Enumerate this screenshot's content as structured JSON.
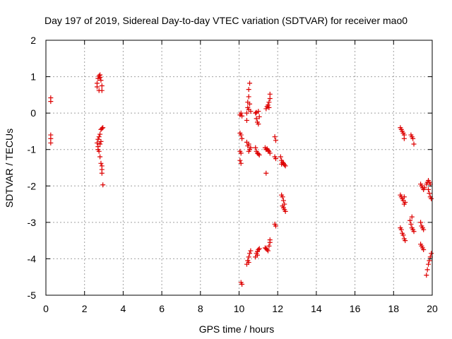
{
  "chart_data": {
    "type": "scatter",
    "title": "Day 197 of 2019, Sidereal Day-to-day VTEC variation (SDTVAR) for receiver mao0",
    "xlabel": "GPS time / hours",
    "ylabel": "SDTVAR / TECUs",
    "xlim": [
      0,
      20
    ],
    "ylim": [
      -5,
      2
    ],
    "xticks": [
      0,
      2,
      4,
      6,
      8,
      10,
      12,
      14,
      16,
      18,
      20
    ],
    "yticks": [
      -5,
      -4,
      -3,
      -2,
      -1,
      0,
      1,
      2
    ],
    "grid": true,
    "marker": "+",
    "colors": {
      "series": "#dd0000",
      "grid": "#a0a0a0",
      "axis": "#000000"
    },
    "series": [
      {
        "name": "SDTVAR",
        "points": [
          [
            0.25,
            0.42
          ],
          [
            0.25,
            0.32
          ],
          [
            0.25,
            -0.6
          ],
          [
            0.25,
            -0.7
          ],
          [
            0.25,
            -0.82
          ],
          [
            2.65,
            0.82
          ],
          [
            2.65,
            0.72
          ],
          [
            2.7,
            0.95
          ],
          [
            2.75,
            1.02
          ],
          [
            2.8,
            0.98
          ],
          [
            2.85,
            0.9
          ],
          [
            2.75,
            0.62
          ],
          [
            2.9,
            0.62
          ],
          [
            2.9,
            0.75
          ],
          [
            2.8,
            1.05
          ],
          [
            2.65,
            -0.82
          ],
          [
            2.7,
            -0.72
          ],
          [
            2.7,
            -0.92
          ],
          [
            2.75,
            -0.65
          ],
          [
            2.75,
            -1.05
          ],
          [
            2.8,
            -0.58
          ],
          [
            2.8,
            -0.85
          ],
          [
            2.8,
            -1.2
          ],
          [
            2.85,
            -0.45
          ],
          [
            2.85,
            -0.78
          ],
          [
            2.85,
            -1.38
          ],
          [
            2.9,
            -0.42
          ],
          [
            2.9,
            -1.45
          ],
          [
            2.9,
            -1.55
          ],
          [
            2.9,
            -1.65
          ],
          [
            2.95,
            -0.4
          ],
          [
            2.95,
            -1.97
          ],
          [
            2.7,
            -1.0
          ],
          [
            10.05,
            -0.05
          ],
          [
            10.1,
            0.0
          ],
          [
            10.15,
            -0.08
          ],
          [
            10.05,
            -0.55
          ],
          [
            10.1,
            -0.6
          ],
          [
            10.15,
            -0.7
          ],
          [
            10.05,
            -1.05
          ],
          [
            10.1,
            -1.1
          ],
          [
            10.05,
            -1.3
          ],
          [
            10.1,
            -1.38
          ],
          [
            10.1,
            -4.65
          ],
          [
            10.15,
            -4.7
          ],
          [
            10.4,
            0.0
          ],
          [
            10.45,
            0.15
          ],
          [
            10.45,
            0.3
          ],
          [
            10.5,
            0.45
          ],
          [
            10.5,
            0.65
          ],
          [
            10.55,
            0.82
          ],
          [
            10.5,
            0.1
          ],
          [
            10.55,
            0.25
          ],
          [
            10.6,
            0.05
          ],
          [
            10.4,
            -0.2
          ],
          [
            10.4,
            -0.8
          ],
          [
            10.45,
            -0.9
          ],
          [
            10.5,
            -0.85
          ],
          [
            10.55,
            -1.0
          ],
          [
            10.6,
            -0.95
          ],
          [
            10.5,
            -1.05
          ],
          [
            10.4,
            -4.15
          ],
          [
            10.45,
            -4.05
          ],
          [
            10.5,
            -3.95
          ],
          [
            10.55,
            -3.85
          ],
          [
            10.6,
            -3.78
          ],
          [
            10.5,
            -4.1
          ],
          [
            10.85,
            0.0
          ],
          [
            10.9,
            -0.15
          ],
          [
            10.95,
            -0.25
          ],
          [
            11.0,
            -0.3
          ],
          [
            11.0,
            0.05
          ],
          [
            11.05,
            -0.1
          ],
          [
            10.9,
            0.02
          ],
          [
            10.85,
            -0.95
          ],
          [
            10.9,
            -1.05
          ],
          [
            10.95,
            -1.1
          ],
          [
            11.0,
            -1.12
          ],
          [
            11.05,
            -1.15
          ],
          [
            10.85,
            -3.95
          ],
          [
            10.9,
            -3.85
          ],
          [
            10.95,
            -3.8
          ],
          [
            11.0,
            -3.75
          ],
          [
            11.05,
            -3.72
          ],
          [
            10.95,
            -3.9
          ],
          [
            11.4,
            0.12
          ],
          [
            11.45,
            0.18
          ],
          [
            11.5,
            0.22
          ],
          [
            11.55,
            0.3
          ],
          [
            11.55,
            0.15
          ],
          [
            11.6,
            0.4
          ],
          [
            11.6,
            0.52
          ],
          [
            11.35,
            -0.95
          ],
          [
            11.4,
            -1.0
          ],
          [
            11.45,
            -0.98
          ],
          [
            11.5,
            -1.02
          ],
          [
            11.55,
            -1.05
          ],
          [
            11.6,
            -1.1
          ],
          [
            11.4,
            -1.65
          ],
          [
            11.35,
            -3.7
          ],
          [
            11.4,
            -3.72
          ],
          [
            11.45,
            -3.75
          ],
          [
            11.5,
            -3.78
          ],
          [
            11.55,
            -3.65
          ],
          [
            11.6,
            -3.55
          ],
          [
            11.6,
            -3.48
          ],
          [
            11.85,
            -0.65
          ],
          [
            11.9,
            -0.75
          ],
          [
            11.85,
            -1.2
          ],
          [
            11.9,
            -1.25
          ],
          [
            11.85,
            -3.05
          ],
          [
            11.9,
            -3.1
          ],
          [
            12.15,
            -1.2
          ],
          [
            12.2,
            -1.3
          ],
          [
            12.25,
            -1.35
          ],
          [
            12.3,
            -1.38
          ],
          [
            12.35,
            -1.42
          ],
          [
            12.4,
            -1.45
          ],
          [
            12.2,
            -1.4
          ],
          [
            12.2,
            -2.25
          ],
          [
            12.25,
            -2.3
          ],
          [
            12.3,
            -2.4
          ],
          [
            12.35,
            -2.5
          ],
          [
            12.3,
            -2.6
          ],
          [
            12.35,
            -2.65
          ],
          [
            12.4,
            -2.7
          ],
          [
            12.25,
            -2.55
          ],
          [
            18.35,
            -0.4
          ],
          [
            18.4,
            -0.45
          ],
          [
            18.45,
            -0.5
          ],
          [
            18.5,
            -0.55
          ],
          [
            18.55,
            -0.6
          ],
          [
            18.55,
            -0.7
          ],
          [
            18.35,
            -2.25
          ],
          [
            18.4,
            -2.3
          ],
          [
            18.45,
            -2.35
          ],
          [
            18.5,
            -2.4
          ],
          [
            18.55,
            -2.5
          ],
          [
            18.6,
            -2.45
          ],
          [
            18.55,
            -2.3
          ],
          [
            18.35,
            -3.15
          ],
          [
            18.4,
            -3.2
          ],
          [
            18.45,
            -3.3
          ],
          [
            18.5,
            -3.35
          ],
          [
            18.55,
            -3.45
          ],
          [
            18.6,
            -3.5
          ],
          [
            18.9,
            -0.6
          ],
          [
            18.95,
            -0.65
          ],
          [
            19.0,
            -0.7
          ],
          [
            19.05,
            -0.85
          ],
          [
            18.85,
            -2.95
          ],
          [
            18.9,
            -3.05
          ],
          [
            18.95,
            -3.15
          ],
          [
            19.0,
            -3.2
          ],
          [
            19.05,
            -3.25
          ],
          [
            18.95,
            -2.85
          ],
          [
            19.4,
            -1.95
          ],
          [
            19.45,
            -2.0
          ],
          [
            19.5,
            -2.05
          ],
          [
            19.55,
            -2.1
          ],
          [
            19.6,
            -2.05
          ],
          [
            19.4,
            -3.0
          ],
          [
            19.45,
            -3.1
          ],
          [
            19.5,
            -3.15
          ],
          [
            19.55,
            -3.2
          ],
          [
            19.4,
            -3.6
          ],
          [
            19.45,
            -3.65
          ],
          [
            19.5,
            -3.7
          ],
          [
            19.55,
            -3.75
          ],
          [
            19.7,
            -1.95
          ],
          [
            19.75,
            -1.9
          ],
          [
            19.8,
            -1.85
          ],
          [
            19.85,
            -1.9
          ],
          [
            19.9,
            -1.95
          ],
          [
            19.8,
            -2.1
          ],
          [
            19.85,
            -2.2
          ],
          [
            19.9,
            -2.3
          ],
          [
            19.95,
            -2.35
          ],
          [
            19.7,
            -4.45
          ],
          [
            19.75,
            -4.3
          ],
          [
            19.8,
            -4.15
          ],
          [
            19.85,
            -4.05
          ],
          [
            19.9,
            -3.95
          ],
          [
            19.95,
            -3.85
          ]
        ]
      }
    ]
  }
}
